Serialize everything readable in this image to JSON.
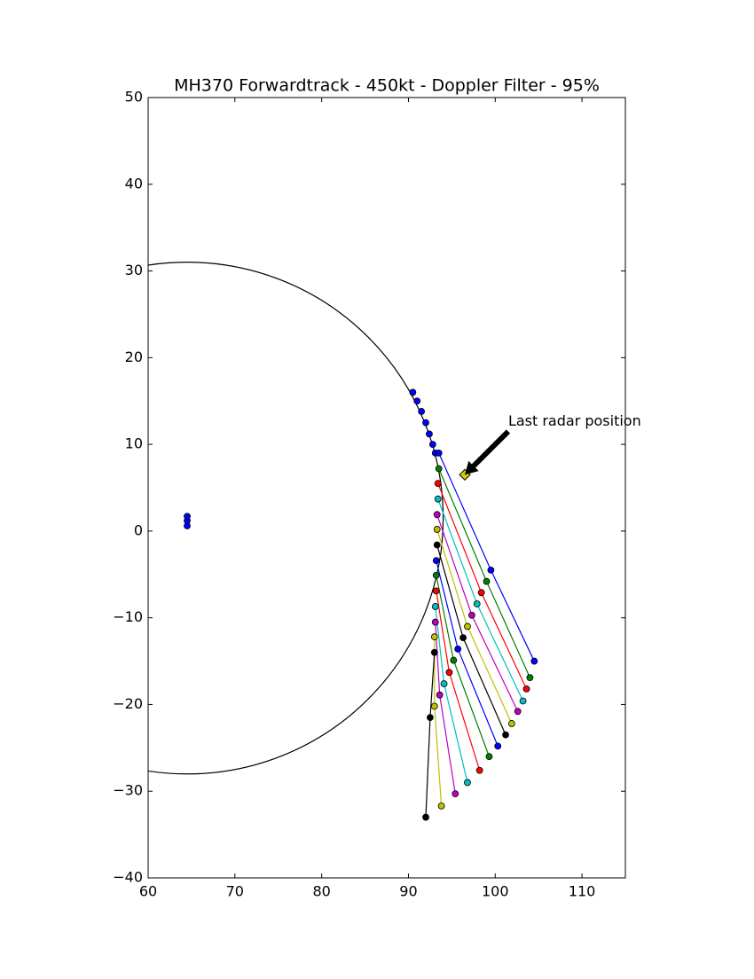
{
  "chart_data": {
    "type": "scatter",
    "title": "MH370 Forwardtrack - 450kt - Doppler Filter - 95%",
    "xlim": [
      60,
      115
    ],
    "ylim": [
      -40,
      50
    ],
    "xticks": [
      60,
      70,
      80,
      90,
      100,
      110
    ],
    "yticks": [
      {
        "value": -40,
        "label": "−40"
      },
      {
        "value": -30,
        "label": "−30"
      },
      {
        "value": -20,
        "label": "−20"
      },
      {
        "value": -10,
        "label": "−10"
      },
      0,
      10,
      20,
      30,
      40,
      50
    ],
    "circle": {
      "center_x": 64.5,
      "center_y": 1.5,
      "radius": 29.5,
      "color": "#000000"
    },
    "annotation": {
      "text": "Last radar position",
      "x": 96.5,
      "y": 6.5,
      "text_x": 101.5,
      "text_y": 11.5,
      "marker_color": "#cccc00"
    },
    "series": [
      {
        "color": "#0000ff",
        "x": [
          64.5,
          64.5,
          64.5
        ],
        "y": [
          0.6,
          1.2,
          1.7
        ],
        "connect": false
      },
      {
        "color": "#0000ff",
        "x": [
          90.5,
          91.0,
          91.5,
          92.0,
          92.4,
          92.8,
          93.1
        ],
        "y": [
          16,
          15,
          13.8,
          12.5,
          11.2,
          10,
          9
        ],
        "connect": false
      },
      {
        "color": "#0000ff",
        "x": [
          93.5,
          99.5,
          104.5
        ],
        "y": [
          9,
          -4.5,
          -15
        ],
        "connect": true
      },
      {
        "color": "#008000",
        "x": [
          93.5,
          99,
          104
        ],
        "y": [
          7.2,
          -5.8,
          -16.9
        ],
        "connect": true
      },
      {
        "color": "#ff0000",
        "x": [
          93.4,
          98.4,
          103.6
        ],
        "y": [
          5.5,
          -7.1,
          -18.2
        ],
        "connect": true
      },
      {
        "color": "#00bfbf",
        "x": [
          93.4,
          97.9,
          103.2
        ],
        "y": [
          3.7,
          -8.4,
          -19.6
        ],
        "connect": true
      },
      {
        "color": "#bf00bf",
        "x": [
          93.3,
          97.3,
          102.6
        ],
        "y": [
          1.9,
          -9.7,
          -20.8
        ],
        "connect": true
      },
      {
        "color": "#bfbf00",
        "x": [
          93.3,
          96.8,
          101.9
        ],
        "y": [
          0.2,
          -11,
          -22.2
        ],
        "connect": true
      },
      {
        "color": "#000000",
        "x": [
          93.3,
          96.3,
          101.2
        ],
        "y": [
          -1.6,
          -12.3,
          -23.5
        ],
        "connect": true
      },
      {
        "color": "#0000ff",
        "x": [
          93.2,
          95.7,
          100.3
        ],
        "y": [
          -3.4,
          -13.6,
          -24.8
        ],
        "connect": true
      },
      {
        "color": "#008000",
        "x": [
          93.2,
          95.2,
          99.3
        ],
        "y": [
          -5.1,
          -14.9,
          -26
        ],
        "connect": true
      },
      {
        "color": "#ff0000",
        "x": [
          93.2,
          94.7,
          98.2
        ],
        "y": [
          -6.9,
          -16.3,
          -27.6
        ],
        "connect": true
      },
      {
        "color": "#00bfbf",
        "x": [
          93.1,
          94.1,
          96.8
        ],
        "y": [
          -8.7,
          -17.6,
          -29
        ],
        "connect": true
      },
      {
        "color": "#bf00bf",
        "x": [
          93.1,
          93.6,
          95.4
        ],
        "y": [
          -10.5,
          -18.9,
          -30.3
        ],
        "connect": true
      },
      {
        "color": "#bfbf00",
        "x": [
          93,
          93,
          93.8
        ],
        "y": [
          -12.2,
          -20.2,
          -31.7
        ],
        "connect": true
      },
      {
        "color": "#000000",
        "x": [
          93,
          92.5,
          92
        ],
        "y": [
          -14,
          -21.5,
          -33
        ],
        "connect": true
      }
    ]
  }
}
